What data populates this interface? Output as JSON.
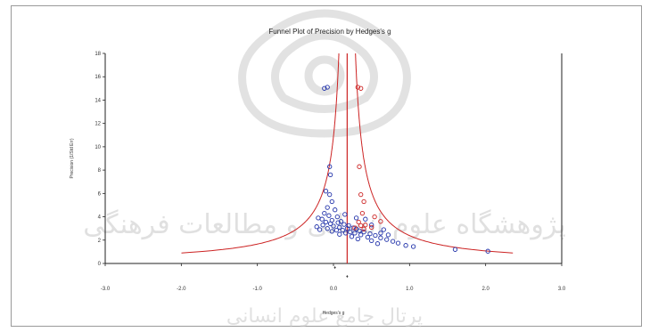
{
  "watermark": {
    "line1": "پژوهشگاه علوم انسانی و مطالعات فرهنگی",
    "line2": "پرتال جامع علوم انسانی"
  },
  "colors": {
    "observed": "#2233aa",
    "imputed": "#cc2222",
    "funnel": "#cc2222",
    "axis": "#222222",
    "watermark": "#cccccc"
  },
  "chart_data": {
    "type": "scatter",
    "title": "Funnel Plot of Precision by Hedges's g",
    "xlabel": "Hedges's g",
    "ylabel": "Precision (1/Std Err)",
    "xlim": [
      -3,
      3
    ],
    "ylim": [
      0,
      18
    ],
    "x_ticks": [
      -3,
      -2,
      -1,
      0,
      1,
      2,
      3
    ],
    "x_tick_labels": [
      "-3.0",
      "-2.0",
      "-1.0",
      "0.0",
      "1.0",
      "2.0",
      "3.0"
    ],
    "y_ticks": [
      0,
      2,
      4,
      6,
      8,
      10,
      12,
      14,
      16,
      18
    ],
    "y_tick_labels": [
      "0",
      "2",
      "4",
      "6",
      "8",
      "10",
      "12",
      "14",
      "16",
      "18"
    ],
    "mean_effect": 0.18,
    "combined_marker_labels": [
      "♦",
      "♦"
    ],
    "series": [
      {
        "name": "Observed",
        "color": "#2233aa",
        "points": [
          [
            -0.08,
            15.1
          ],
          [
            -0.12,
            15.0
          ],
          [
            -0.05,
            8.3
          ],
          [
            -0.04,
            7.6
          ],
          [
            -0.1,
            6.2
          ],
          [
            -0.05,
            5.9
          ],
          [
            -0.02,
            5.3
          ],
          [
            -0.08,
            4.8
          ],
          [
            0.02,
            4.6
          ],
          [
            -0.12,
            4.3
          ],
          [
            -0.06,
            4.1
          ],
          [
            0.05,
            4.0
          ],
          [
            -0.2,
            3.9
          ],
          [
            -0.15,
            3.8
          ],
          [
            -0.02,
            3.7
          ],
          [
            0.1,
            3.6
          ],
          [
            -0.1,
            3.55
          ],
          [
            0.06,
            3.5
          ],
          [
            -0.04,
            3.4
          ],
          [
            0.14,
            3.35
          ],
          [
            -0.14,
            3.3
          ],
          [
            0.2,
            3.25
          ],
          [
            0.0,
            3.2
          ],
          [
            -0.22,
            3.15
          ],
          [
            0.08,
            3.1
          ],
          [
            0.26,
            3.05
          ],
          [
            -0.08,
            3.0
          ],
          [
            0.18,
            3.0
          ],
          [
            0.3,
            2.95
          ],
          [
            -0.18,
            2.9
          ],
          [
            0.04,
            2.85
          ],
          [
            0.12,
            2.85
          ],
          [
            0.34,
            2.8
          ],
          [
            -0.02,
            2.75
          ],
          [
            0.22,
            2.7
          ],
          [
            0.4,
            2.7
          ],
          [
            0.16,
            2.6
          ],
          [
            0.28,
            2.6
          ],
          [
            0.48,
            2.55
          ],
          [
            0.08,
            2.5
          ],
          [
            0.36,
            2.45
          ],
          [
            0.55,
            2.4
          ],
          [
            0.24,
            2.3
          ],
          [
            0.45,
            2.25
          ],
          [
            0.62,
            2.2
          ],
          [
            0.32,
            2.1
          ],
          [
            0.7,
            2.05
          ],
          [
            0.5,
            1.95
          ],
          [
            0.78,
            1.9
          ],
          [
            0.85,
            1.75
          ],
          [
            0.58,
            1.7
          ],
          [
            0.95,
            1.55
          ],
          [
            0.42,
            3.8
          ],
          [
            0.5,
            3.3
          ],
          [
            0.66,
            2.9
          ],
          [
            1.05,
            1.45
          ],
          [
            0.3,
            3.9
          ],
          [
            0.15,
            4.2
          ],
          [
            0.62,
            2.6
          ],
          [
            0.72,
            2.45
          ],
          [
            1.6,
            1.2
          ],
          [
            2.03,
            1.05
          ]
        ]
      },
      {
        "name": "Imputed",
        "color": "#cc2222",
        "points": [
          [
            0.32,
            15.1
          ],
          [
            0.36,
            15.0
          ],
          [
            0.34,
            8.3
          ],
          [
            0.36,
            5.9
          ],
          [
            0.4,
            5.3
          ],
          [
            0.38,
            4.3
          ],
          [
            0.54,
            4.0
          ],
          [
            0.62,
            3.6
          ],
          [
            0.33,
            3.55
          ],
          [
            0.42,
            3.3
          ],
          [
            0.5,
            3.1
          ],
          [
            0.28,
            3.05
          ],
          [
            0.36,
            3.25
          ],
          [
            0.4,
            2.95
          ]
        ]
      }
    ]
  }
}
